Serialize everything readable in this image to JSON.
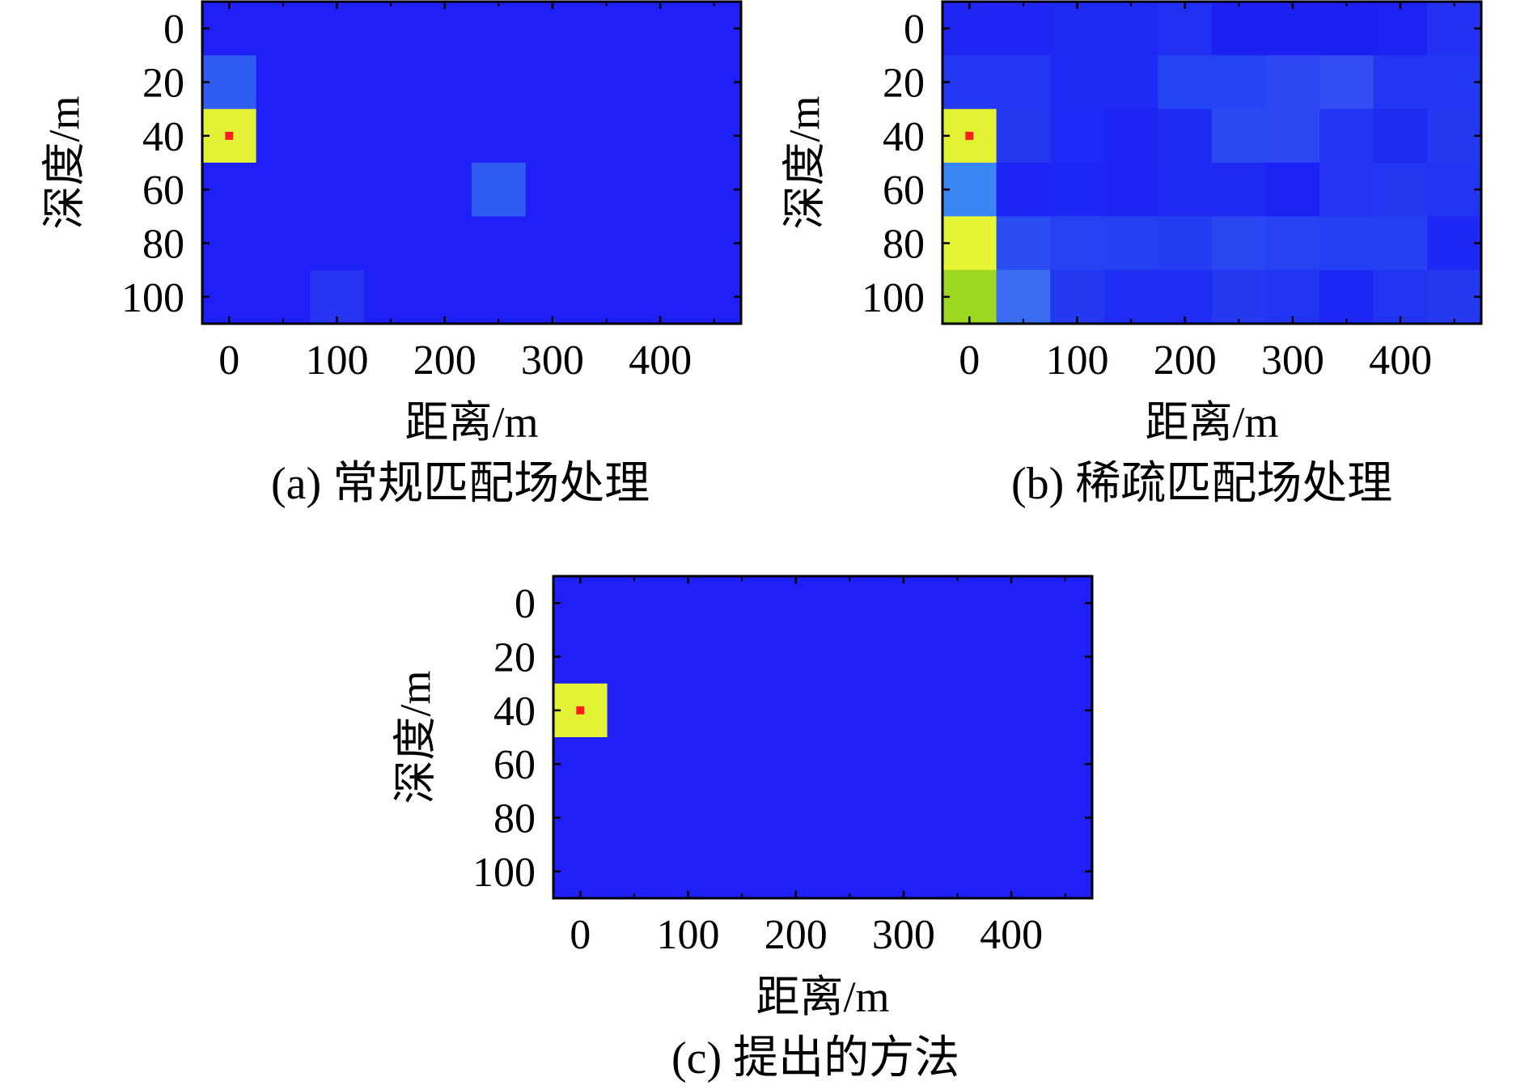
{
  "figure": {
    "captions": [
      "(a) 常规匹配场处理",
      "(b) 稀疏匹配场处理",
      "(c) 提出的方法"
    ]
  },
  "colors": {
    "background_cell": "#1e1ef7",
    "frame": "#000000",
    "source_marker": "#ff1e1e"
  },
  "chart_data": [
    {
      "type": "heatmap",
      "caption": "(a) 常规匹配场处理",
      "xlabel": "距离/m",
      "ylabel": "深度/m",
      "x_categories": [
        0,
        50,
        100,
        150,
        200,
        250,
        300,
        350,
        400,
        450
      ],
      "y_categories": [
        0,
        20,
        40,
        60,
        80,
        100
      ],
      "x_ticks": [
        0,
        100,
        200,
        300,
        400
      ],
      "y_ticks": [
        0,
        20,
        40,
        60,
        80,
        100
      ],
      "xlim": [
        -25,
        475
      ],
      "ylim": [
        -10,
        110
      ],
      "y_inverted": true,
      "grid": false,
      "true_source": {
        "x": 0,
        "y": 40
      },
      "cells": [
        [
          "#1f20f6",
          "#1f20f6",
          "#1f20f6",
          "#1f20f6",
          "#1f20f6",
          "#1f20f6",
          "#1f20f6",
          "#1f20f6",
          "#1f20f6",
          "#1f20f6"
        ],
        [
          "#2f5cf2",
          "#1f20f6",
          "#1f20f6",
          "#1f20f6",
          "#1f20f6",
          "#1f20f6",
          "#1f20f6",
          "#1f20f6",
          "#1f20f6",
          "#1f20f6"
        ],
        [
          "#e3f234",
          "#1f20f6",
          "#1f20f6",
          "#1f20f6",
          "#1f20f6",
          "#1f20f6",
          "#1f20f6",
          "#1f20f6",
          "#1f20f6",
          "#1f20f6"
        ],
        [
          "#1f20f6",
          "#1f20f6",
          "#1f20f6",
          "#1f20f6",
          "#1f20f6",
          "#2f5cf2",
          "#1f20f6",
          "#1f20f6",
          "#1f20f6",
          "#1f20f6"
        ],
        [
          "#1f20f6",
          "#1f20f6",
          "#1f20f6",
          "#1f20f6",
          "#1f20f6",
          "#1f20f6",
          "#1f20f6",
          "#1f20f6",
          "#1f20f6",
          "#1f20f6"
        ],
        [
          "#1f20f6",
          "#1f20f6",
          "#2634f2",
          "#1f20f6",
          "#1f20f6",
          "#1f20f6",
          "#1f20f6",
          "#1f20f6",
          "#1f20f6",
          "#1f20f6"
        ]
      ]
    },
    {
      "type": "heatmap",
      "caption": "(b) 稀疏匹配场处理",
      "xlabel": "距离/m",
      "ylabel": "深度/m",
      "x_categories": [
        0,
        50,
        100,
        150,
        200,
        250,
        300,
        350,
        400,
        450
      ],
      "y_categories": [
        0,
        20,
        40,
        60,
        80,
        100
      ],
      "x_ticks": [
        0,
        100,
        200,
        300,
        400
      ],
      "y_ticks": [
        0,
        20,
        40,
        60,
        80,
        100
      ],
      "xlim": [
        -25,
        475
      ],
      "ylim": [
        -10,
        110
      ],
      "y_inverted": true,
      "grid": false,
      "true_source": {
        "x": 0,
        "y": 40
      },
      "cells": [
        [
          "#1f26f4",
          "#1f26f4",
          "#1e2af2",
          "#1e2af2",
          "#2130f2",
          "#1c20f2",
          "#1c20f2",
          "#1c20f2",
          "#1c22f2",
          "#2332f2"
        ],
        [
          "#2238f2",
          "#2238f2",
          "#1f2af4",
          "#1f2af4",
          "#2645f2",
          "#2744f2",
          "#2b48f2",
          "#304ef2",
          "#2336f2",
          "#2338f2"
        ],
        [
          "#e2f134",
          "#2539f2",
          "#1d29f4",
          "#1d24f4",
          "#1e2af2",
          "#2a49f2",
          "#2b48f2",
          "#2034f2",
          "#1e2cf2",
          "#2538f2"
        ],
        [
          "#3a86f4",
          "#1d24f6",
          "#1e28f4",
          "#1d24f4",
          "#1e2af4",
          "#1e2af2",
          "#1c22f4",
          "#2434f2",
          "#2438f2",
          "#2236f2"
        ],
        [
          "#e6f634",
          "#2b4ef2",
          "#2742f2",
          "#2540f2",
          "#243cf2",
          "#2846f2",
          "#2742f2",
          "#2440f2",
          "#2540f2",
          "#1e28f4"
        ],
        [
          "#9dd821",
          "#3a6cf4",
          "#2438f2",
          "#1f2cf4",
          "#1e2cf4",
          "#2438f2",
          "#2034f2",
          "#1e28f4",
          "#2234f2",
          "#2538f2"
        ]
      ]
    },
    {
      "type": "heatmap",
      "caption": "(c) 提出的方法",
      "xlabel": "距离/m",
      "ylabel": "深度/m",
      "x_categories": [
        0,
        50,
        100,
        150,
        200,
        250,
        300,
        350,
        400,
        450
      ],
      "y_categories": [
        0,
        20,
        40,
        60,
        80,
        100
      ],
      "x_ticks": [
        0,
        100,
        200,
        300,
        400
      ],
      "y_ticks": [
        0,
        20,
        40,
        60,
        80,
        100
      ],
      "xlim": [
        -25,
        475
      ],
      "ylim": [
        -10,
        110
      ],
      "y_inverted": true,
      "grid": false,
      "true_source": {
        "x": 0,
        "y": 40
      },
      "cells": [
        [
          "#1f20f6",
          "#1f20f6",
          "#1f20f6",
          "#1f20f6",
          "#1f20f6",
          "#1f20f6",
          "#1f20f6",
          "#1f20f6",
          "#1f20f6",
          "#1f20f6"
        ],
        [
          "#1f20f6",
          "#1f20f6",
          "#1f20f6",
          "#1f20f6",
          "#1f20f6",
          "#1f20f6",
          "#1f20f6",
          "#1f20f6",
          "#1f20f6",
          "#1f20f6"
        ],
        [
          "#e3f234",
          "#1f20f6",
          "#1f20f6",
          "#1f20f6",
          "#1f20f6",
          "#1f20f6",
          "#1f20f6",
          "#1f20f6",
          "#1f20f6",
          "#1f20f6"
        ],
        [
          "#1f20f6",
          "#1f20f6",
          "#1f20f6",
          "#1f20f6",
          "#1f20f6",
          "#1f20f6",
          "#1f20f6",
          "#1f20f6",
          "#1f20f6",
          "#1f20f6"
        ],
        [
          "#1f20f6",
          "#1f20f6",
          "#1f20f6",
          "#1f20f6",
          "#1f20f6",
          "#1f20f6",
          "#1f20f6",
          "#1f20f6",
          "#1f20f6",
          "#1f20f6"
        ],
        [
          "#1f20f6",
          "#1f20f6",
          "#1f20f6",
          "#1f20f6",
          "#1f20f6",
          "#1f20f6",
          "#1f20f6",
          "#1f20f6",
          "#1f20f6",
          "#1f20f6"
        ]
      ]
    }
  ]
}
